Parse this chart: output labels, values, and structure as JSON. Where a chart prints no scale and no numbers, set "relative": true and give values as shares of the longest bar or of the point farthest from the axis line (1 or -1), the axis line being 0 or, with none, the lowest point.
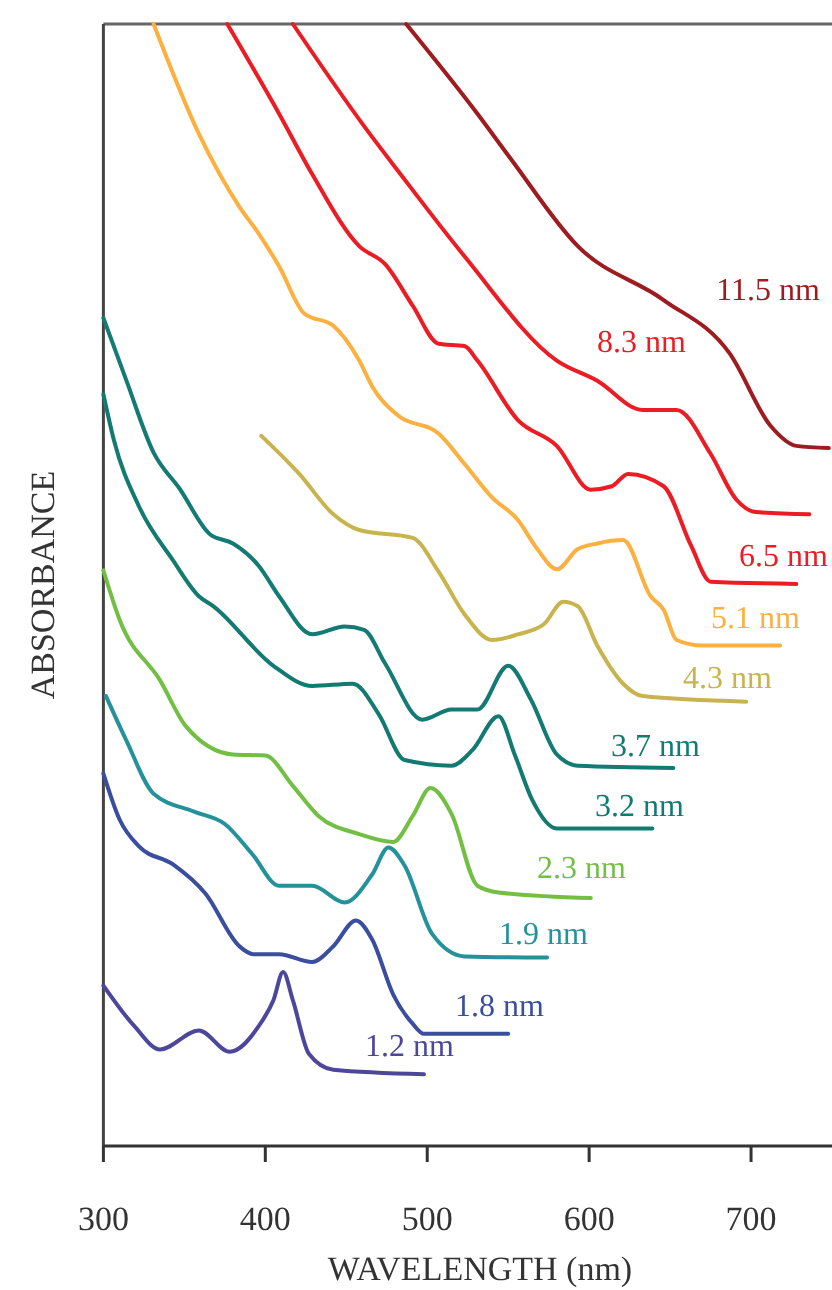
{
  "chart_data": {
    "type": "line",
    "relative": true,
    "xlabel": "WAVELENGTH (nm)",
    "ylabel": "ABSORBANCE",
    "xlim": [
      300,
      750
    ],
    "xticks": [
      300,
      400,
      500,
      600,
      700
    ],
    "series": [
      {
        "name": "11.5 nm",
        "color": "#9e1b20",
        "x": [
          487,
          531,
          552,
          593,
          646,
          687,
          712,
          728,
          748
        ],
        "values": [
          1.0,
          0.92,
          0.879,
          0.802,
          0.754,
          0.706,
          0.642,
          0.624,
          0.622
        ]
      },
      {
        "name": "8.3 nm",
        "color": "#ec1c24",
        "x": [
          417,
          461,
          482,
          523,
          580,
          605,
          633,
          654,
          675,
          691,
          703,
          736
        ],
        "values": [
          1.0,
          0.909,
          0.869,
          0.793,
          0.7,
          0.682,
          0.656,
          0.656,
          0.617,
          0.576,
          0.565,
          0.563
        ]
      },
      {
        "name": "6.5 nm",
        "color": "#ec1c24",
        "x": [
          376.5,
          408.5,
          429,
          458,
          474,
          491,
          507,
          523,
          531,
          556,
          580,
          601,
          614,
          624,
          646,
          663,
          675,
          728
        ],
        "values": [
          1.0,
          0.92,
          0.866,
          0.802,
          0.786,
          0.749,
          0.715,
          0.713,
          0.7,
          0.647,
          0.624,
          0.585,
          0.588,
          0.599,
          0.588,
          0.535,
          0.503,
          0.501
        ]
      },
      {
        "name": "5.1 nm",
        "color": "#fbb040",
        "x": [
          331,
          359,
          384,
          396,
          408.5,
          424,
          442,
          458,
          466,
          482,
          507,
          523,
          540,
          556,
          568,
          580,
          593,
          605,
          621,
          638,
          646,
          654,
          670,
          718
        ],
        "values": [
          1.0,
          0.902,
          0.837,
          0.813,
          0.784,
          0.742,
          0.731,
          0.7,
          0.677,
          0.651,
          0.635,
          0.608,
          0.578,
          0.558,
          0.532,
          0.514,
          0.532,
          0.537,
          0.54,
          0.49,
          0.478,
          0.451,
          0.446,
          0.446
        ]
      },
      {
        "name": "4.3 nm",
        "color": "#c8b44f",
        "x": [
          397.5,
          421,
          442,
          458,
          491,
          507,
          523,
          540,
          556,
          572,
          584,
          593,
          605,
          621,
          633,
          697
        ],
        "values": [
          0.633,
          0.599,
          0.563,
          0.549,
          0.542,
          0.512,
          0.474,
          0.451,
          0.456,
          0.465,
          0.485,
          0.481,
          0.446,
          0.412,
          0.401,
          0.396
        ]
      },
      {
        "name": "3.7 nm",
        "color": "#137a74",
        "x": [
          300,
          314,
          331,
          347,
          366,
          380,
          396,
          408.5,
          429,
          449,
          461,
          474,
          497,
          515,
          531,
          550,
          564,
          580,
          593,
          652
        ],
        "values": [
          0.738,
          0.683,
          0.618,
          0.586,
          0.545,
          0.537,
          0.517,
          0.49,
          0.456,
          0.463,
          0.46,
          0.43,
          0.38,
          0.389,
          0.389,
          0.428,
          0.398,
          0.349,
          0.339,
          0.337
        ]
      },
      {
        "name": "3.2 nm",
        "color": "#127a70",
        "x": [
          300,
          306.5,
          322,
          343,
          359,
          368,
          405,
          429,
          454,
          470,
          486,
          515,
          528,
          544,
          554,
          565,
          580,
          639
        ],
        "values": [
          0.67,
          0.629,
          0.57,
          0.522,
          0.49,
          0.481,
          0.428,
          0.41,
          0.412,
          0.385,
          0.344,
          0.339,
          0.353,
          0.383,
          0.349,
          0.308,
          0.283,
          0.283
        ]
      },
      {
        "name": "2.3 nm",
        "color": "#72bf44",
        "x": [
          300,
          310,
          335,
          351,
          380,
          400,
          417,
          433,
          458,
          479,
          491,
          502,
          515,
          531,
          544,
          601
        ],
        "values": [
          0.513,
          0.469,
          0.415,
          0.374,
          0.349,
          0.348,
          0.321,
          0.294,
          0.278,
          0.271,
          0.294,
          0.319,
          0.296,
          0.232,
          0.226,
          0.221
        ]
      },
      {
        "name": "1.9 nm",
        "color": "#25919a",
        "x": [
          301.6,
          314,
          331,
          356,
          375,
          392,
          408.5,
          429,
          449,
          466,
          476,
          486,
          503,
          523,
          574
        ],
        "values": [
          0.401,
          0.362,
          0.314,
          0.298,
          0.287,
          0.26,
          0.232,
          0.232,
          0.217,
          0.242,
          0.266,
          0.25,
          0.189,
          0.169,
          0.168
        ]
      },
      {
        "name": "1.8 nm",
        "color": "#3a4ea0",
        "x": [
          300,
          310,
          322,
          343,
          363,
          384,
          392.5,
          408.5,
          429,
          442,
          456,
          466,
          479,
          491,
          498,
          550
        ],
        "values": [
          0.332,
          0.291,
          0.267,
          0.251,
          0.225,
          0.178,
          0.171,
          0.171,
          0.164,
          0.178,
          0.201,
          0.184,
          0.135,
          0.109,
          0.1,
          0.1
        ]
      },
      {
        "name": "1.2 nm",
        "color": "#4d479c",
        "x": [
          300,
          319,
          335,
          359,
          378,
          396,
          405,
          411,
          417,
          427,
          442,
          498
        ],
        "values": [
          0.143,
          0.107,
          0.086,
          0.103,
          0.084,
          0.107,
          0.13,
          0.155,
          0.13,
          0.082,
          0.068,
          0.064
        ]
      }
    ]
  }
}
